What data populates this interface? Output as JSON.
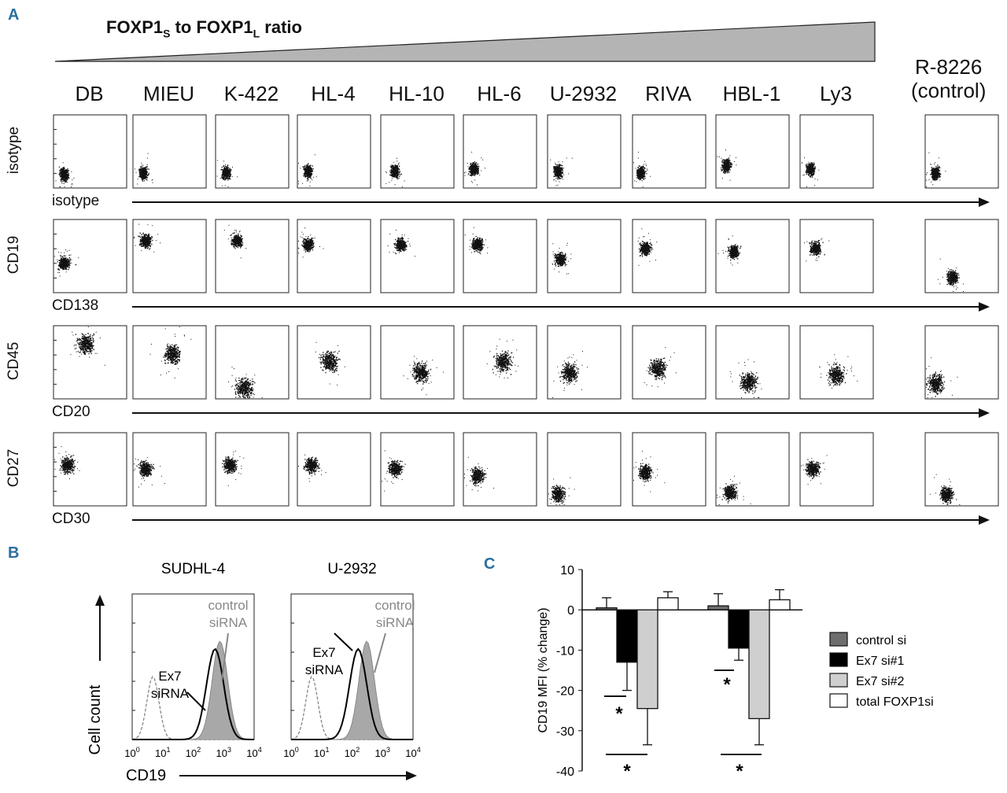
{
  "panelA": {
    "letter": "A",
    "ratio_label": "FOXP1",
    "ratio_sub1": "S",
    "ratio_mid": " to FOXP1",
    "ratio_sub2": "L",
    "ratio_end": " ratio",
    "cell_lines": [
      "DB",
      "MIEU",
      "K-422",
      "HL-4",
      "HL-10",
      "HL-6",
      "U-2932",
      "RIVA",
      "HBL-1",
      "Ly3"
    ],
    "control_line1": "R-8226",
    "control_line2": "(control)",
    "rows": [
      {
        "ylabel": "isotype",
        "xlabel": "isotype"
      },
      {
        "ylabel": "CD19",
        "xlabel": "CD138"
      },
      {
        "ylabel": "CD45",
        "xlabel": "CD20"
      },
      {
        "ylabel": "CD27",
        "xlabel": "CD30"
      }
    ]
  },
  "panelB": {
    "letter": "B",
    "plots": [
      {
        "title": "SUDHL-4",
        "ex7_l1": "Ex7",
        "ex7_l2": "siRNA",
        "ctrl_l1": "control",
        "ctrl_l2": "siRNA"
      },
      {
        "title": "U-2932",
        "ex7_l1": "Ex7",
        "ex7_l2": "siRNA",
        "ctrl_l1": "control",
        "ctrl_l2": "siRNA"
      }
    ],
    "ylabel": "Cell count",
    "xlabel": "CD19",
    "ticks": [
      "10",
      "10",
      "10",
      "10",
      "10"
    ],
    "tick_exps": [
      "0",
      "1",
      "2",
      "3",
      "4"
    ]
  },
  "panelC": {
    "letter": "C",
    "ylabel": "CD19 MFI  (% change)",
    "star": "*"
  },
  "chart_data": {
    "type": "bar",
    "ylabel": "CD19 MFI  (% change)",
    "ylim": [
      -40,
      10
    ],
    "yticks": [
      "10",
      "0",
      "-10",
      "-20",
      "-30",
      "-40"
    ],
    "legend_position": "right",
    "groups": 2,
    "series": [
      {
        "name": "control si",
        "color": "#6e6e6e",
        "values": [
          0.5,
          1
        ],
        "errors": [
          2.5,
          3
        ]
      },
      {
        "name": "Ex7 si#1",
        "color": "#000000",
        "values": [
          -13,
          -9.5
        ],
        "errors": [
          7,
          3
        ]
      },
      {
        "name": "Ex7 si#2",
        "color": "#cfcfcf",
        "values": [
          -24.5,
          -27
        ],
        "errors": [
          9,
          6.5
        ]
      },
      {
        "name": "total FOXP1si",
        "color": "#ffffff",
        "values": [
          3,
          2.5
        ],
        "errors": [
          1.5,
          2.5
        ]
      }
    ]
  }
}
